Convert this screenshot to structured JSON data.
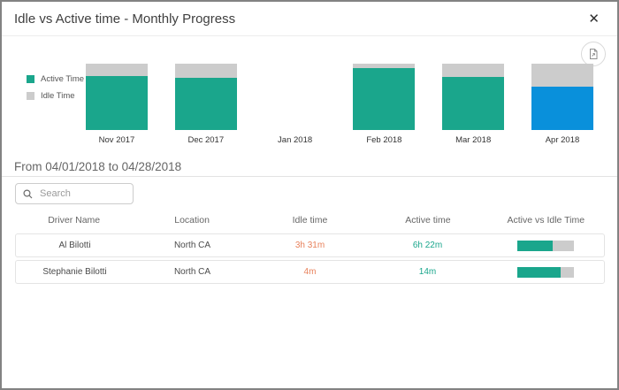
{
  "dialog": {
    "title": "Idle vs Active time - Monthly Progress",
    "close_glyph": "✕"
  },
  "icons": {
    "close": "close-icon",
    "export": "export-image-icon",
    "search": "search-icon"
  },
  "colors": {
    "active_teal": "#1AA68C",
    "idle_gray": "#CCCCCC",
    "highlight_blue": "#0990DB",
    "idle_text": "#E8815B",
    "active_text": "#1AA68C"
  },
  "legend": {
    "items": [
      {
        "label": "Active Time",
        "color": "#1AA68C"
      },
      {
        "label": "Idle Time",
        "color": "#CCCCCC"
      }
    ]
  },
  "chart_data": {
    "type": "bar",
    "stacked": true,
    "unit": "percent",
    "title": "Idle vs Active time - Monthly Progress",
    "categories": [
      "Nov 2017",
      "Dec 2017",
      "Jan 2018",
      "Feb 2018",
      "Mar 2018",
      "Apr 2018"
    ],
    "series": [
      {
        "name": "Active Time",
        "color": "#1AA68C",
        "values": [
          82,
          79,
          null,
          94,
          80,
          66
        ]
      },
      {
        "name": "Idle Time",
        "color": "#CCCCCC",
        "values": [
          18,
          21,
          null,
          6,
          20,
          34
        ]
      }
    ],
    "highlight": {
      "category": "Apr 2018",
      "series": "Active Time",
      "color": "#0990DB"
    },
    "ylim": [
      0,
      100
    ],
    "grid": false,
    "legend_position": "left"
  },
  "date_range": {
    "label": "From 04/01/2018 to 04/28/2018"
  },
  "search": {
    "placeholder": "Search",
    "value": ""
  },
  "table": {
    "columns": [
      "Driver Name",
      "Location",
      "Idle time",
      "Active time",
      "Active vs Idle Time"
    ],
    "rows": [
      {
        "driver": "Al Bilotti",
        "location": "North CA",
        "idle_time": "3h 31m",
        "active_time": "6h 22m",
        "active_pct": 64
      },
      {
        "driver": "Stephanie Bilotti",
        "location": "North CA",
        "idle_time": "4m",
        "active_time": "14m",
        "active_pct": 78
      }
    ]
  }
}
